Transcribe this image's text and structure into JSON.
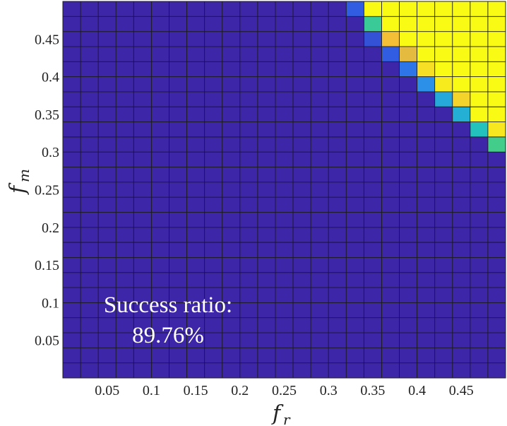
{
  "chart_data": {
    "type": "heatmap",
    "title": "",
    "xlabel": {
      "main": "f",
      "sub": "r"
    },
    "ylabel": {
      "main": "f",
      "sub": "m"
    },
    "x_range": [
      0.0,
      0.5
    ],
    "y_range": [
      0.0,
      0.5
    ],
    "grid_size": 25,
    "x_ticks": [
      "0.05",
      "0.1",
      "0.15",
      "0.2",
      "0.25",
      "0.3",
      "0.35",
      "0.4",
      "0.45"
    ],
    "y_ticks": [
      "0.05",
      "0.1",
      "0.15",
      "0.2",
      "0.25",
      "0.3",
      "0.35",
      "0.4",
      "0.45"
    ],
    "x_tick_values": [
      0.05,
      0.1,
      0.15,
      0.2,
      0.25,
      0.3,
      0.35,
      0.4,
      0.45
    ],
    "y_tick_values": [
      0.05,
      0.1,
      0.15,
      0.2,
      0.25,
      0.3,
      0.35,
      0.4,
      0.45
    ],
    "colormap": [
      "#3e26a8",
      "#2f63e8",
      "#2b9ae8",
      "#1fc0c5",
      "#4cd17a",
      "#f1b83a",
      "#f9fb15"
    ],
    "base_value": 0,
    "cells": [
      {
        "col": 16,
        "row": 24,
        "v": 0.15
      },
      {
        "col": 17,
        "row": 24,
        "v": 1
      },
      {
        "col": 18,
        "row": 24,
        "v": 1
      },
      {
        "col": 19,
        "row": 24,
        "v": 1
      },
      {
        "col": 20,
        "row": 24,
        "v": 1
      },
      {
        "col": 21,
        "row": 24,
        "v": 1
      },
      {
        "col": 22,
        "row": 24,
        "v": 1
      },
      {
        "col": 23,
        "row": 24,
        "v": 1
      },
      {
        "col": 24,
        "row": 24,
        "v": 1
      },
      {
        "col": 17,
        "row": 23,
        "v": 0.6
      },
      {
        "col": 18,
        "row": 23,
        "v": 1
      },
      {
        "col": 19,
        "row": 23,
        "v": 1
      },
      {
        "col": 20,
        "row": 23,
        "v": 1
      },
      {
        "col": 21,
        "row": 23,
        "v": 1
      },
      {
        "col": 22,
        "row": 23,
        "v": 1
      },
      {
        "col": 23,
        "row": 23,
        "v": 1
      },
      {
        "col": 24,
        "row": 23,
        "v": 1
      },
      {
        "col": 17,
        "row": 22,
        "v": 0.12
      },
      {
        "col": 18,
        "row": 22,
        "v": 0.85
      },
      {
        "col": 19,
        "row": 22,
        "v": 1
      },
      {
        "col": 20,
        "row": 22,
        "v": 1
      },
      {
        "col": 21,
        "row": 22,
        "v": 1
      },
      {
        "col": 22,
        "row": 22,
        "v": 1
      },
      {
        "col": 23,
        "row": 22,
        "v": 1
      },
      {
        "col": 24,
        "row": 22,
        "v": 1
      },
      {
        "col": 18,
        "row": 21,
        "v": 0.15
      },
      {
        "col": 19,
        "row": 21,
        "v": 0.82
      },
      {
        "col": 20,
        "row": 21,
        "v": 1
      },
      {
        "col": 21,
        "row": 21,
        "v": 1
      },
      {
        "col": 22,
        "row": 21,
        "v": 1
      },
      {
        "col": 23,
        "row": 21,
        "v": 1
      },
      {
        "col": 24,
        "row": 21,
        "v": 1
      },
      {
        "col": 19,
        "row": 20,
        "v": 0.22
      },
      {
        "col": 20,
        "row": 20,
        "v": 0.93
      },
      {
        "col": 21,
        "row": 20,
        "v": 1
      },
      {
        "col": 22,
        "row": 20,
        "v": 1
      },
      {
        "col": 23,
        "row": 20,
        "v": 1
      },
      {
        "col": 24,
        "row": 20,
        "v": 1
      },
      {
        "col": 20,
        "row": 19,
        "v": 0.3
      },
      {
        "col": 21,
        "row": 19,
        "v": 0.96
      },
      {
        "col": 22,
        "row": 19,
        "v": 1
      },
      {
        "col": 23,
        "row": 19,
        "v": 1
      },
      {
        "col": 24,
        "row": 19,
        "v": 1
      },
      {
        "col": 21,
        "row": 18,
        "v": 0.4
      },
      {
        "col": 22,
        "row": 18,
        "v": 0.9
      },
      {
        "col": 23,
        "row": 18,
        "v": 1
      },
      {
        "col": 24,
        "row": 18,
        "v": 1
      },
      {
        "col": 22,
        "row": 17,
        "v": 0.43
      },
      {
        "col": 23,
        "row": 17,
        "v": 1
      },
      {
        "col": 24,
        "row": 17,
        "v": 1
      },
      {
        "col": 23,
        "row": 16,
        "v": 0.52
      },
      {
        "col": 24,
        "row": 16,
        "v": 0.95
      },
      {
        "col": 24,
        "row": 15,
        "v": 0.63
      },
      {
        "col": 25,
        "row": 15,
        "v": 0.95
      },
      {
        "col": 25,
        "row": 14,
        "v": 0.7
      }
    ],
    "annotation": {
      "line1": "Success ratio:",
      "line2": "89.76%"
    },
    "grid": true,
    "legend": "none"
  }
}
